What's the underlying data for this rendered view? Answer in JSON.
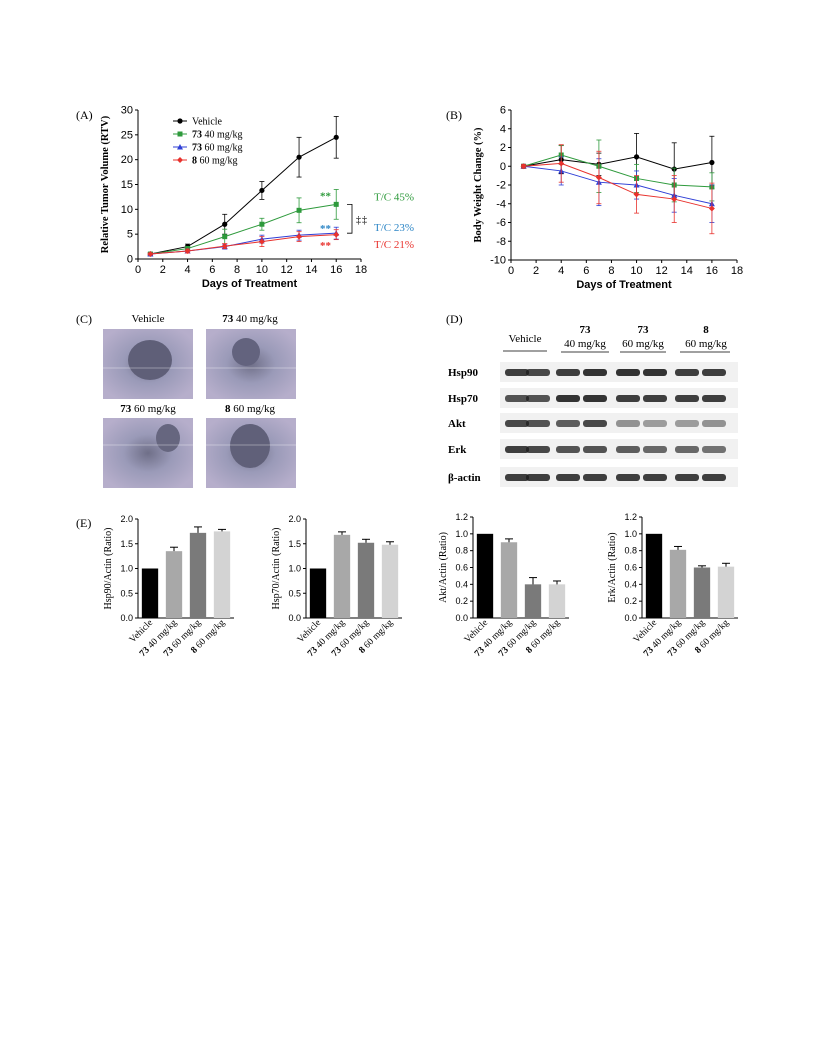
{
  "panels": {
    "A": "(A)",
    "B": "(B)",
    "C": "(C)",
    "D": "(D)",
    "E": "(E)"
  },
  "colors": {
    "black": "#000000",
    "green": "#2e9a3c",
    "blue": "#2f3fd6",
    "red": "#e8322d",
    "blue_text": "#2d86c6",
    "bar_dark": "#7a7a7a",
    "bar_light": "#a8a8a8",
    "bar_lighter": "#d3d3d3"
  },
  "chart_data": [
    {
      "id": "A",
      "type": "line",
      "xlabel": "Days of Treatment",
      "ylabel": "Relative Tumor Volume (RTV)",
      "xlim": [
        0,
        18
      ],
      "ylim": [
        0,
        30
      ],
      "xticks": [
        0,
        2,
        4,
        6,
        8,
        10,
        12,
        14,
        16,
        18
      ],
      "yticks": [
        0,
        5,
        10,
        15,
        20,
        25,
        30
      ],
      "x": [
        1,
        4,
        7,
        10,
        13,
        16
      ],
      "legend_position": "top-left",
      "series": [
        {
          "name": "Vehicle",
          "name_bold": "",
          "name_rest": "Vehicle",
          "color": "#000000",
          "marker": "circle",
          "values": [
            1.0,
            2.5,
            7.0,
            13.8,
            20.5,
            24.5
          ],
          "err": [
            0.3,
            0.5,
            2.0,
            1.8,
            4.0,
            4.2
          ]
        },
        {
          "name": "73 40 mg/kg",
          "name_bold": "73",
          "name_rest": "40 mg/kg",
          "color": "#2e9a3c",
          "marker": "square",
          "values": [
            1.0,
            2.1,
            4.5,
            7.0,
            9.8,
            11.0
          ],
          "err": [
            0.3,
            0.4,
            1.5,
            1.2,
            2.5,
            3.0
          ]
        },
        {
          "name": "73 60 mg/kg",
          "name_bold": "73",
          "name_rest": "60 mg/kg",
          "color": "#2f3fd6",
          "marker": "triangle",
          "values": [
            1.0,
            1.6,
            2.5,
            4.0,
            4.8,
            5.2
          ],
          "err": [
            0.2,
            0.4,
            0.5,
            0.8,
            1.0,
            1.2
          ]
        },
        {
          "name": "8 60 mg/kg",
          "name_bold": "8",
          "name_rest": "60 mg/kg",
          "color": "#e8322d",
          "marker": "diamond",
          "values": [
            1.0,
            1.6,
            2.6,
            3.5,
            4.5,
            4.9
          ],
          "err": [
            0.2,
            0.4,
            0.5,
            1.0,
            1.0,
            1.0
          ]
        }
      ],
      "annotations": [
        {
          "text": "T/C 45%",
          "color": "#2e9a3c"
        },
        {
          "text": "T/C 23%",
          "color": "#2d86c6"
        },
        {
          "text": "T/C 21%",
          "color": "#e8322d"
        },
        {
          "text": "**",
          "color": "#2e9a3c"
        },
        {
          "text": "**",
          "color": "#2d86c6"
        },
        {
          "text": "**",
          "color": "#e8322d"
        },
        {
          "text": "‡",
          "color": "#000000"
        },
        {
          "text": "‡",
          "color": "#000000"
        }
      ]
    },
    {
      "id": "B",
      "type": "line",
      "xlabel": "Days of Treatment",
      "ylabel": "Body Weight Change (%)",
      "xlim": [
        0,
        18
      ],
      "ylim": [
        -10,
        6
      ],
      "xticks": [
        0,
        2,
        4,
        6,
        8,
        10,
        12,
        14,
        16,
        18
      ],
      "yticks": [
        -10,
        -8,
        -6,
        -4,
        -2,
        0,
        2,
        4,
        6
      ],
      "x": [
        1,
        4,
        7,
        10,
        13,
        16
      ],
      "series": [
        {
          "name": "Vehicle",
          "color": "#000000",
          "marker": "circle",
          "values": [
            0,
            0.7,
            0.2,
            1.0,
            -0.3,
            0.4
          ],
          "err": [
            0.2,
            1.5,
            1.2,
            2.5,
            2.8,
            2.8
          ]
        },
        {
          "name": "73 40 mg/kg",
          "color": "#2e9a3c",
          "marker": "square",
          "values": [
            0,
            1.2,
            0.0,
            -1.3,
            -2.0,
            -2.2
          ],
          "err": [
            0.2,
            1.0,
            2.8,
            1.5,
            1.8,
            1.5
          ]
        },
        {
          "name": "73 60 mg/kg",
          "color": "#2f3fd6",
          "marker": "triangle",
          "values": [
            0,
            -0.5,
            -1.7,
            -2.0,
            -3.1,
            -4.0
          ],
          "err": [
            0.2,
            1.5,
            2.5,
            1.5,
            1.8,
            2.0
          ]
        },
        {
          "name": "8 60 mg/kg",
          "color": "#e8322d",
          "marker": "diamond",
          "values": [
            0,
            0.3,
            -1.2,
            -3.0,
            -3.5,
            -4.5
          ],
          "err": [
            0.2,
            2.0,
            2.8,
            2.0,
            2.5,
            2.7
          ]
        }
      ]
    },
    {
      "id": "E1",
      "type": "bar",
      "ylabel": "Hsp90/Actin (Ratio)",
      "ylim": [
        0,
        2.0
      ],
      "yticks": [
        "0.0",
        "0.5",
        "1.0",
        "1.5",
        "2.0"
      ],
      "categories": [
        "Vehicle",
        "73 40 mg/kg",
        "73 60 mg/kg",
        "8 60 mg/kg"
      ],
      "values": [
        1.0,
        1.35,
        1.72,
        1.75
      ],
      "err": [
        0,
        0.08,
        0.12,
        0.04
      ]
    },
    {
      "id": "E2",
      "type": "bar",
      "ylabel": "Hsp70/Actin (Ratio)",
      "ylim": [
        0,
        2.0
      ],
      "yticks": [
        "0.0",
        "0.5",
        "1.0",
        "1.5",
        "2.0"
      ],
      "categories": [
        "Vehicle",
        "73 40 mg/kg",
        "73 60 mg/kg",
        "8 60 mg/kg"
      ],
      "values": [
        1.0,
        1.68,
        1.52,
        1.48
      ],
      "err": [
        0,
        0.06,
        0.07,
        0.06
      ]
    },
    {
      "id": "E3",
      "type": "bar",
      "ylabel": "Akt/Actin (Ratio)",
      "ylim": [
        0,
        1.2
      ],
      "yticks": [
        "0.0",
        "0.2",
        "0.4",
        "0.6",
        "0.8",
        "1.0",
        "1.2"
      ],
      "categories": [
        "Vehicle",
        "73 40 mg/kg",
        "73 60 mg/kg",
        "8 60 mg/kg"
      ],
      "values": [
        1.0,
        0.9,
        0.4,
        0.4
      ],
      "err": [
        0,
        0.04,
        0.08,
        0.04
      ]
    },
    {
      "id": "E4",
      "type": "bar",
      "ylabel": "Erk/Actin (Ratio)",
      "ylim": [
        0,
        1.2
      ],
      "yticks": [
        "0.0",
        "0.2",
        "0.4",
        "0.6",
        "0.8",
        "1.0",
        "1.2"
      ],
      "categories": [
        "Vehicle",
        "73 40 mg/kg",
        "73 60 mg/kg",
        "8 60 mg/kg"
      ],
      "values": [
        1.0,
        0.81,
        0.6,
        0.61
      ],
      "err": [
        0,
        0.04,
        0.02,
        0.04
      ]
    }
  ],
  "histology": {
    "labels": [
      {
        "bold": "",
        "rest": "Vehicle"
      },
      {
        "bold": "73",
        "rest": "40 mg/kg"
      },
      {
        "bold": "73",
        "rest": "60 mg/kg"
      },
      {
        "bold": "8",
        "rest": "60 mg/kg"
      }
    ]
  },
  "blot": {
    "groups": [
      {
        "line1": "",
        "line2": "Vehicle"
      },
      {
        "line1": "73",
        "line2": "40 mg/kg"
      },
      {
        "line1": "73",
        "line2": "60 mg/kg"
      },
      {
        "line1": "8",
        "line2": "60 mg/kg"
      }
    ],
    "proteins": [
      "Hsp90",
      "Hsp70",
      "Akt",
      "Erk",
      "β-actin"
    ]
  }
}
